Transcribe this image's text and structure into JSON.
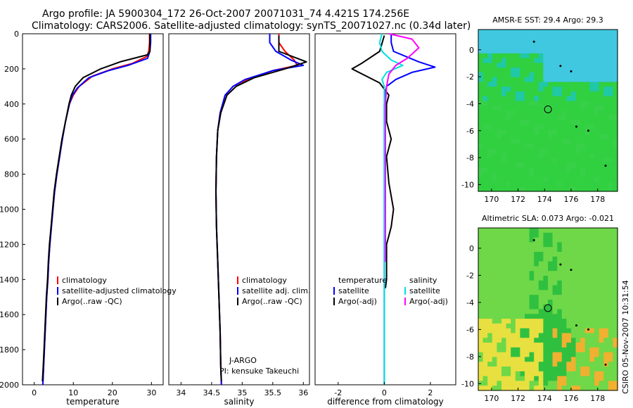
{
  "header": {
    "line1": "Argo profile: JA 5900304_172 26-Oct-2007 20071031_74 4.421S 174.256E",
    "line2": "Climatology: CARS2006. Satellite-adjusted climatology: synTS_20071027.nc (0.34d later)"
  },
  "footer": {
    "credit": "CSIRO 05-Nov-2007 10:31:54"
  },
  "colors": {
    "climatology": "#ff0000",
    "satellite": "#0000ff",
    "argo": "#000000",
    "magenta": "#ff00ff",
    "cyan": "#00e0e0"
  },
  "chart_data": [
    {
      "id": "temp",
      "type": "line",
      "xlabel": "temperature",
      "ylabel": "",
      "xlim": [
        -3,
        33
      ],
      "ylim": [
        2000,
        0
      ],
      "xticks": [
        0,
        10,
        20,
        30
      ],
      "yticks": [
        0,
        200,
        400,
        600,
        800,
        1000,
        1200,
        1400,
        1600,
        1800,
        2000
      ],
      "legend": {
        "position": "lower-right",
        "entries": [
          "climatology",
          "satellite-adjusted climatology",
          "Argo(..raw -QC)"
        ]
      },
      "series": [
        {
          "name": "climatology",
          "color": "#ff0000",
          "points": [
            [
              29.5,
              0
            ],
            [
              29.5,
              50
            ],
            [
              29.3,
              100
            ],
            [
              28.8,
              130
            ],
            [
              25,
              170
            ],
            [
              20,
              200
            ],
            [
              15,
              240
            ],
            [
              11.5,
              300
            ],
            [
              10,
              350
            ],
            [
              9,
              400
            ],
            [
              8,
              500
            ],
            [
              7.2,
              600
            ],
            [
              6.5,
              700
            ],
            [
              5.8,
              800
            ],
            [
              5.2,
              900
            ],
            [
              4.8,
              1000
            ],
            [
              4.4,
              1100
            ],
            [
              4,
              1200
            ],
            [
              3.7,
              1300
            ],
            [
              3.5,
              1400
            ],
            [
              3.2,
              1500
            ],
            [
              3,
              1600
            ],
            [
              2.8,
              1700
            ],
            [
              2.6,
              1800
            ],
            [
              2.4,
              1900
            ],
            [
              2.2,
              2000
            ]
          ]
        },
        {
          "name": "satellite-adjusted climatology",
          "color": "#0000ff",
          "points": [
            [
              29.8,
              0
            ],
            [
              29.8,
              50
            ],
            [
              29.6,
              100
            ],
            [
              29,
              140
            ],
            [
              24,
              180
            ],
            [
              19,
              210
            ],
            [
              14,
              250
            ],
            [
              11,
              310
            ],
            [
              9.8,
              350
            ],
            [
              9,
              400
            ],
            [
              8,
              500
            ],
            [
              7.2,
              600
            ],
            [
              6.5,
              700
            ],
            [
              5.8,
              800
            ],
            [
              5.2,
              900
            ],
            [
              4.8,
              1000
            ],
            [
              4.4,
              1100
            ],
            [
              4,
              1200
            ],
            [
              3.7,
              1300
            ],
            [
              3.5,
              1400
            ],
            [
              3.2,
              1500
            ],
            [
              3,
              1600
            ],
            [
              2.8,
              1700
            ],
            [
              2.6,
              1800
            ],
            [
              2.4,
              1900
            ],
            [
              2.2,
              2000
            ]
          ]
        },
        {
          "name": "Argo(..raw -QC)",
          "color": "#000000",
          "points": [
            [
              29.6,
              0
            ],
            [
              29.6,
              100
            ],
            [
              29,
              120
            ],
            [
              22,
              160
            ],
            [
              17,
              200
            ],
            [
              12.5,
              250
            ],
            [
              10.5,
              300
            ],
            [
              9.5,
              350
            ],
            [
              8.9,
              400
            ],
            [
              8,
              500
            ],
            [
              7.1,
              600
            ],
            [
              6.4,
              700
            ],
            [
              5.7,
              800
            ],
            [
              5.1,
              900
            ],
            [
              4.7,
              1000
            ],
            [
              4.3,
              1100
            ],
            [
              3.9,
              1200
            ],
            [
              3.6,
              1300
            ],
            [
              3.4,
              1400
            ],
            [
              3.1,
              1500
            ],
            [
              2.9,
              1600
            ],
            [
              2.7,
              1700
            ],
            [
              2.5,
              1800
            ],
            [
              2.3,
              1900
            ],
            [
              2.1,
              1980
            ]
          ]
        }
      ]
    },
    {
      "id": "sal",
      "type": "line",
      "xlabel": "salinity",
      "ylabel": "",
      "xlim": [
        33.8,
        36.1
      ],
      "ylim": [
        2000,
        0
      ],
      "xticks": [
        34,
        34.5,
        35,
        35.5,
        36
      ],
      "yticks": [],
      "legend": {
        "position": "lower-right",
        "entries": [
          "climatology",
          "satellite adj. clim.",
          "Argo(..raw -QC)"
        ]
      },
      "annotations": [
        "J-ARGO",
        "PI: kensuke Takeuchi"
      ],
      "series": [
        {
          "name": "climatology",
          "color": "#ff0000",
          "points": [
            [
              35.6,
              0
            ],
            [
              35.6,
              50
            ],
            [
              35.7,
              100
            ],
            [
              35.85,
              150
            ],
            [
              35.9,
              180
            ],
            [
              35.5,
              210
            ],
            [
              35.1,
              260
            ],
            [
              34.9,
              300
            ],
            [
              34.75,
              350
            ],
            [
              34.65,
              450
            ],
            [
              34.6,
              550
            ],
            [
              34.58,
              700
            ],
            [
              34.57,
              900
            ],
            [
              34.58,
              1100
            ],
            [
              34.6,
              1300
            ],
            [
              34.62,
              1500
            ],
            [
              34.64,
              1700
            ],
            [
              34.65,
              1900
            ],
            [
              34.66,
              2000
            ]
          ]
        },
        {
          "name": "satellite adj. clim.",
          "color": "#0000ff",
          "points": [
            [
              35.45,
              0
            ],
            [
              35.45,
              50
            ],
            [
              35.55,
              100
            ],
            [
              35.8,
              150
            ],
            [
              36.0,
              180
            ],
            [
              35.5,
              210
            ],
            [
              35.05,
              260
            ],
            [
              34.85,
              300
            ],
            [
              34.72,
              350
            ],
            [
              34.64,
              450
            ],
            [
              34.6,
              550
            ],
            [
              34.58,
              700
            ],
            [
              34.57,
              900
            ],
            [
              34.58,
              1100
            ],
            [
              34.6,
              1300
            ],
            [
              34.62,
              1500
            ],
            [
              34.64,
              1700
            ],
            [
              34.65,
              1900
            ],
            [
              34.66,
              2000
            ]
          ]
        },
        {
          "name": "Argo(..raw -QC)",
          "color": "#000000",
          "points": [
            [
              35.6,
              10
            ],
            [
              35.6,
              100
            ],
            [
              35.9,
              140
            ],
            [
              36.05,
              160
            ],
            [
              35.7,
              200
            ],
            [
              35.2,
              250
            ],
            [
              34.9,
              300
            ],
            [
              34.75,
              350
            ],
            [
              34.65,
              450
            ],
            [
              34.6,
              550
            ],
            [
              34.58,
              700
            ],
            [
              34.57,
              900
            ],
            [
              34.58,
              1100
            ],
            [
              34.6,
              1300
            ],
            [
              34.62,
              1500
            ],
            [
              34.64,
              1700
            ],
            [
              34.65,
              1900
            ],
            [
              34.66,
              1980
            ]
          ]
        }
      ]
    },
    {
      "id": "diff",
      "type": "line",
      "xlabel": "difference from climatology",
      "ylabel": "",
      "xlim": [
        -3,
        3.1
      ],
      "ylim": [
        2000,
        0
      ],
      "xticks": [
        -2,
        0,
        2
      ],
      "yticks": [],
      "legend": {
        "position": "lower-center",
        "entries": [
          "temperature",
          "satellite",
          "Argo(-adj)",
          "salinity",
          "satellite",
          "Argo(-adj)"
        ]
      },
      "series": [
        {
          "name": "temperature satellite",
          "color": "#0000ff",
          "points": [
            [
              0.3,
              0
            ],
            [
              0.3,
              50
            ],
            [
              0.4,
              100
            ],
            [
              1.5,
              160
            ],
            [
              2.2,
              190
            ],
            [
              1.2,
              220
            ],
            [
              0.5,
              260
            ],
            [
              0.1,
              300
            ],
            [
              0,
              400
            ],
            [
              0,
              2000
            ]
          ]
        },
        {
          "name": "temperature Argo(-adj)",
          "color": "#000000",
          "points": [
            [
              0,
              10
            ],
            [
              -0.2,
              100
            ],
            [
              -1.0,
              170
            ],
            [
              -1.4,
              200
            ],
            [
              -0.8,
              240
            ],
            [
              -0.2,
              280
            ],
            [
              0.2,
              350
            ],
            [
              0.1,
              400
            ],
            [
              0.1,
              500
            ],
            [
              0.3,
              600
            ],
            [
              0.1,
              700
            ],
            [
              0.2,
              850
            ],
            [
              0.4,
              1000
            ],
            [
              0.3,
              1100
            ],
            [
              0.1,
              1200
            ],
            [
              0.1,
              1400
            ],
            [
              0.05,
              1450
            ]
          ]
        },
        {
          "name": "salinity satellite",
          "color": "#00e0e0",
          "points": [
            [
              -0.1,
              0
            ],
            [
              -0.2,
              50
            ],
            [
              -0.1,
              100
            ],
            [
              0.3,
              150
            ],
            [
              0.8,
              180
            ],
            [
              0.1,
              220
            ],
            [
              -0.1,
              260
            ],
            [
              0,
              300
            ],
            [
              0,
              2000
            ]
          ]
        },
        {
          "name": "salinity Argo(-adj)",
          "color": "#ff00ff",
          "points": [
            [
              0.2,
              0
            ],
            [
              1.2,
              30
            ],
            [
              1.5,
              80
            ],
            [
              1.0,
              140
            ],
            [
              0.5,
              180
            ],
            [
              0.2,
              230
            ],
            [
              0.1,
              300
            ],
            [
              0.05,
              400
            ],
            [
              0.05,
              1300
            ]
          ]
        }
      ]
    },
    {
      "id": "sst",
      "type": "heatmap",
      "title": "AMSR-E SST: 29.4 Argo: 29.3",
      "xlim": [
        169,
        179.5
      ],
      "ylim": [
        -10.5,
        1.5
      ],
      "xticks": [
        170,
        172,
        174,
        176,
        178
      ],
      "yticks": [
        0,
        -2,
        -4,
        -6,
        -8,
        -10
      ],
      "marker": [
        174.256,
        -4.421
      ],
      "colors": [
        "#30d040",
        "#40c8e0",
        "#20c8a8",
        "#38d048"
      ]
    },
    {
      "id": "sla",
      "type": "heatmap",
      "title": "Altimetric SLA: 0.073 Argo: -0.021",
      "xlim": [
        169,
        179.5
      ],
      "ylim": [
        -10.5,
        1.5
      ],
      "xticks": [
        170,
        172,
        174,
        176,
        178
      ],
      "yticks": [
        0,
        -2,
        -4,
        -6,
        -8,
        -10
      ],
      "marker": [
        174.256,
        -4.421
      ],
      "colors": [
        "#6ed848",
        "#30c040",
        "#e8e040",
        "#f0b030"
      ]
    }
  ]
}
